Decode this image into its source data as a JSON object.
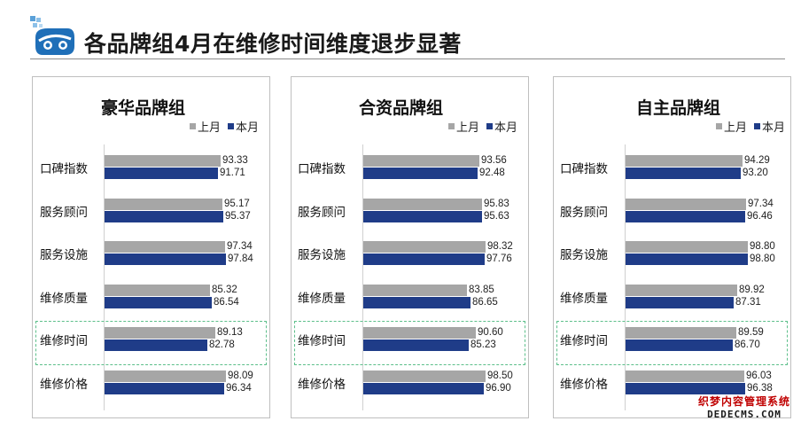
{
  "page": {
    "title": "各品牌组4月在维修时间维度退步显著"
  },
  "colors": {
    "last_month": "#a6a6a6",
    "this_month": "#1f3c88",
    "highlight": "#5cbf8a"
  },
  "icons": {
    "logo": "car-logo-icon"
  },
  "chart_data": [
    {
      "type": "bar",
      "orientation": "horizontal",
      "title": "豪华品牌组",
      "legend": [
        "上月",
        "本月"
      ],
      "legend_position": "top-right",
      "categories": [
        "口碑指数",
        "服务顾问",
        "服务设施",
        "维修质量",
        "维修时间",
        "维修价格"
      ],
      "series": [
        {
          "name": "上月",
          "values": [
            93.33,
            95.17,
            97.34,
            85.32,
            89.13,
            98.09
          ]
        },
        {
          "name": "本月",
          "values": [
            91.71,
            95.37,
            97.84,
            86.54,
            82.78,
            96.34
          ]
        }
      ],
      "highlight_category": "维修时间"
    },
    {
      "type": "bar",
      "orientation": "horizontal",
      "title": "合资品牌组",
      "legend": [
        "上月",
        "本月"
      ],
      "legend_position": "top-right",
      "categories": [
        "口碑指数",
        "服务顾问",
        "服务设施",
        "维修质量",
        "维修时间",
        "维修价格"
      ],
      "series": [
        {
          "name": "上月",
          "values": [
            93.56,
            95.83,
            98.32,
            83.85,
            90.6,
            98.5
          ]
        },
        {
          "name": "本月",
          "values": [
            92.48,
            95.63,
            97.76,
            86.65,
            85.23,
            96.9
          ]
        }
      ],
      "highlight_category": "维修时间"
    },
    {
      "type": "bar",
      "orientation": "horizontal",
      "title": "自主品牌组",
      "legend": [
        "上月",
        "本月"
      ],
      "legend_position": "top-right",
      "categories": [
        "口碑指数",
        "服务顾问",
        "服务设施",
        "维修质量",
        "维修时间",
        "维修价格"
      ],
      "series": [
        {
          "name": "上月",
          "values": [
            94.29,
            97.34,
            98.8,
            89.92,
            89.59,
            96.03
          ]
        },
        {
          "name": "本月",
          "values": [
            93.2,
            96.46,
            98.8,
            87.31,
            86.7,
            96.38
          ]
        }
      ],
      "highlight_category": "维修时间"
    }
  ],
  "watermark": {
    "line1": "织梦内容管理系统",
    "line2": "DEDECMS.COM"
  }
}
